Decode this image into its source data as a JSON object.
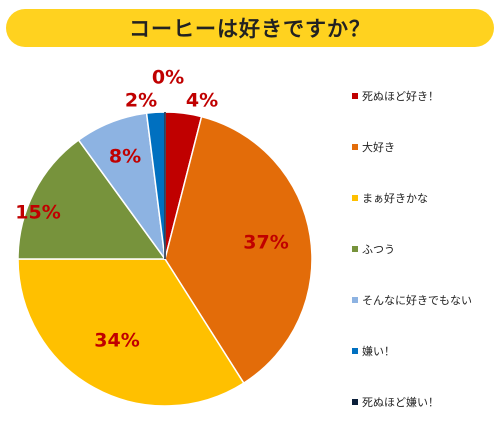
{
  "title": "コーヒーは好きですか？",
  "chart_data": {
    "type": "pie",
    "categories": [
      "死ぬほど好き！",
      "大好き",
      "まぁ好きかな",
      "ふつう",
      "そんなに好きでもない",
      "嫌い！",
      "死ぬほど嫌い！"
    ],
    "values": [
      4,
      37,
      34,
      15,
      8,
      2,
      0
    ],
    "labels": [
      "4%",
      "37%",
      "34%",
      "15%",
      "8%",
      "2%",
      "0%"
    ],
    "colors": [
      "#c00000",
      "#e36c09",
      "#ffc000",
      "#77933c",
      "#8db3e2",
      "#0070c0",
      "#0b1f3a"
    ],
    "label_color": "#c00000",
    "legend_position": "right"
  }
}
